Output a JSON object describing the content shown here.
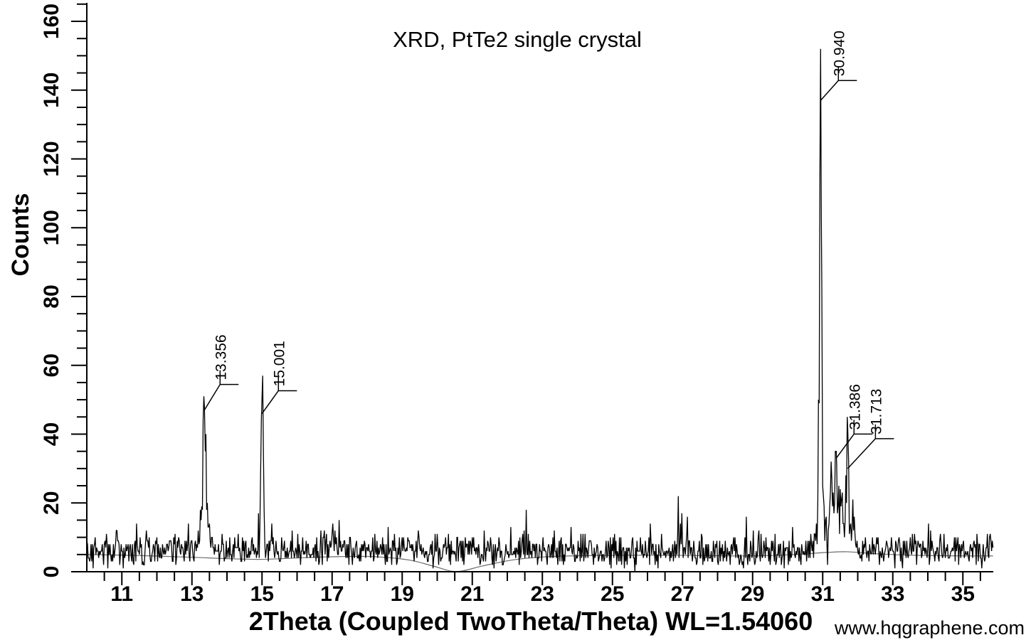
{
  "page": {
    "background": "#ffffff"
  },
  "chart_data": {
    "type": "line",
    "title": "XRD, PtTe2 single crystal",
    "xlabel": "2Theta (Coupled TwoTheta/Theta) WL=1.54060",
    "ylabel": "Counts",
    "watermark": "www.hqgraphene.com",
    "grid": false,
    "legend": null,
    "xlim": [
      10,
      35.86
    ],
    "ylim": [
      0,
      165
    ],
    "x_major_ticks": [
      11,
      13,
      15,
      17,
      19,
      21,
      23,
      25,
      27,
      29,
      31,
      33,
      35
    ],
    "x_minor_step": 0.5,
    "y_major_ticks": [
      0,
      20,
      40,
      60,
      80,
      100,
      120,
      140,
      160
    ],
    "y_minor_step": 5,
    "axis_color": "#000000",
    "trace_color": "#000000",
    "background_curve_color": "#6b6b6b",
    "baseline_counts": 6.2,
    "sample_step": 0.02,
    "noise": {
      "model": "poisson",
      "seed": 42
    },
    "annotations": [
      {
        "label": "13.356",
        "x": 13.356,
        "attach_counts": 47
      },
      {
        "label": "15.001",
        "x": 15.001,
        "attach_counts": 46
      },
      {
        "label": "30.940",
        "x": 30.94,
        "attach_counts": 137
      },
      {
        "label": "31.386",
        "x": 31.386,
        "attach_counts": 33
      },
      {
        "label": "31.713",
        "x": 31.713,
        "attach_counts": 30
      }
    ],
    "peaks": [
      {
        "center": 13.356,
        "height": 35,
        "sigma": 0.042,
        "snap": true
      },
      {
        "center": 13.356,
        "height": 7,
        "sigma": 0.14,
        "snap": false
      },
      {
        "center": 15.001,
        "height": 40,
        "sigma": 0.032,
        "snap": true
      },
      {
        "center": 15.001,
        "height": 5,
        "sigma": 0.11,
        "snap": false
      },
      {
        "center": 16.95,
        "height": 2.5,
        "sigma": 0.12,
        "snap": false
      },
      {
        "center": 26.95,
        "height": 2.5,
        "sigma": 0.12,
        "snap": false
      },
      {
        "center": 30.75,
        "height": 4,
        "sigma": 0.06,
        "snap": false
      },
      {
        "center": 30.88,
        "height": 31,
        "sigma": 0.015,
        "snap": true
      },
      {
        "center": 30.94,
        "height": 126,
        "sigma": 0.02,
        "snap": true
      },
      {
        "center": 30.958,
        "height": 20,
        "sigma": 0.07,
        "snap": false
      },
      {
        "center": 30.975,
        "height": 30,
        "sigma": 0.012,
        "snap": true
      },
      {
        "center": 31.24,
        "height": 14,
        "sigma": 0.04,
        "snap": false
      },
      {
        "center": 31.386,
        "height": 24,
        "sigma": 0.045,
        "snap": true
      },
      {
        "center": 31.45,
        "height": 5,
        "sigma": 0.22,
        "snap": false
      },
      {
        "center": 31.53,
        "height": 10,
        "sigma": 0.04,
        "snap": false
      },
      {
        "center": 31.713,
        "height": 33,
        "sigma": 0.035,
        "snap": true
      },
      {
        "center": 31.86,
        "height": 8,
        "sigma": 0.045,
        "snap": false
      }
    ],
    "background_curve": [
      [
        10,
        5.0
      ],
      [
        11.5,
        4.7
      ],
      [
        13,
        4.2
      ],
      [
        14,
        3.8
      ],
      [
        15,
        3.6
      ],
      [
        16.2,
        4.1
      ],
      [
        17.2,
        4.4
      ],
      [
        18.2,
        4.4
      ],
      [
        19.2,
        3.4
      ],
      [
        19.9,
        1.6
      ],
      [
        20.55,
        0.05
      ],
      [
        21.3,
        1.7
      ],
      [
        22.2,
        3.5
      ],
      [
        23.2,
        4.4
      ],
      [
        24.5,
        4.7
      ],
      [
        26,
        4.8
      ],
      [
        27.5,
        4.7
      ],
      [
        29,
        4.6
      ],
      [
        30.2,
        5.0
      ],
      [
        31.1,
        5.6
      ],
      [
        31.7,
        5.8
      ],
      [
        32.4,
        5.3
      ],
      [
        33.5,
        4.8
      ],
      [
        35,
        4.6
      ],
      [
        35.86,
        4.6
      ]
    ]
  }
}
